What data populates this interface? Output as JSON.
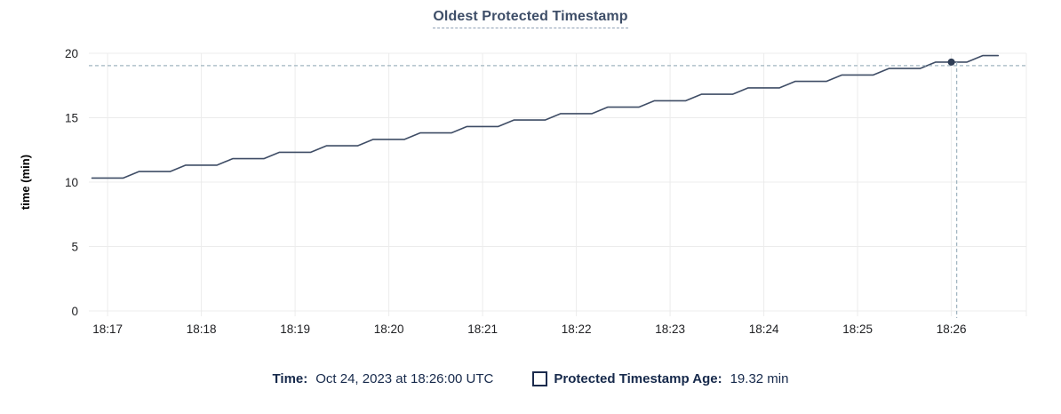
{
  "legend": {
    "time_label": "Time:",
    "time_value": "Oct 24, 2023 at 18:26:00 UTC",
    "series_label": "Protected Timestamp Age:",
    "series_value": "19.32 min"
  },
  "chart_data": {
    "type": "line",
    "title": "Oldest Protected Timestamp",
    "xlabel": "",
    "ylabel": "time (min)",
    "ylim": [
      0,
      20
    ],
    "yticks": [
      0,
      5,
      10,
      15,
      20
    ],
    "xticks": [
      "18:17",
      "18:18",
      "18:19",
      "18:20",
      "18:21",
      "18:22",
      "18:23",
      "18:24",
      "18:25",
      "18:26"
    ],
    "x_domain": [
      "18:16:48",
      "18:26:48"
    ],
    "grid": true,
    "legend_position": "bottom",
    "grid_color": "#ececec",
    "crosshair_color": "#a2b6c1",
    "series": [
      {
        "name": "Protected Timestamp Age",
        "color": "#3f4d66",
        "points": [
          [
            "18:16:50",
            10.32
          ],
          [
            "18:17:00",
            10.32
          ],
          [
            "18:17:10",
            10.32
          ],
          [
            "18:17:20",
            10.82
          ],
          [
            "18:17:30",
            10.82
          ],
          [
            "18:17:40",
            10.82
          ],
          [
            "18:17:50",
            11.32
          ],
          [
            "18:18:00",
            11.32
          ],
          [
            "18:18:10",
            11.32
          ],
          [
            "18:18:20",
            11.82
          ],
          [
            "18:18:30",
            11.82
          ],
          [
            "18:18:40",
            11.82
          ],
          [
            "18:18:50",
            12.32
          ],
          [
            "18:19:00",
            12.32
          ],
          [
            "18:19:10",
            12.32
          ],
          [
            "18:19:20",
            12.82
          ],
          [
            "18:19:30",
            12.82
          ],
          [
            "18:19:40",
            12.82
          ],
          [
            "18:19:50",
            13.32
          ],
          [
            "18:20:00",
            13.32
          ],
          [
            "18:20:10",
            13.32
          ],
          [
            "18:20:20",
            13.82
          ],
          [
            "18:20:30",
            13.82
          ],
          [
            "18:20:40",
            13.82
          ],
          [
            "18:20:50",
            14.32
          ],
          [
            "18:21:00",
            14.32
          ],
          [
            "18:21:10",
            14.32
          ],
          [
            "18:21:20",
            14.82
          ],
          [
            "18:21:30",
            14.82
          ],
          [
            "18:21:40",
            14.82
          ],
          [
            "18:21:50",
            15.32
          ],
          [
            "18:22:00",
            15.32
          ],
          [
            "18:22:10",
            15.32
          ],
          [
            "18:22:20",
            15.82
          ],
          [
            "18:22:30",
            15.82
          ],
          [
            "18:22:40",
            15.82
          ],
          [
            "18:22:50",
            16.32
          ],
          [
            "18:23:00",
            16.32
          ],
          [
            "18:23:10",
            16.32
          ],
          [
            "18:23:20",
            16.82
          ],
          [
            "18:23:30",
            16.82
          ],
          [
            "18:23:40",
            16.82
          ],
          [
            "18:23:50",
            17.32
          ],
          [
            "18:24:00",
            17.32
          ],
          [
            "18:24:10",
            17.32
          ],
          [
            "18:24:20",
            17.82
          ],
          [
            "18:24:30",
            17.82
          ],
          [
            "18:24:40",
            17.82
          ],
          [
            "18:24:50",
            18.32
          ],
          [
            "18:25:00",
            18.32
          ],
          [
            "18:25:10",
            18.32
          ],
          [
            "18:25:20",
            18.82
          ],
          [
            "18:25:30",
            18.82
          ],
          [
            "18:25:40",
            18.82
          ],
          [
            "18:25:50",
            19.32
          ],
          [
            "18:26:00",
            19.32
          ],
          [
            "18:26:10",
            19.32
          ],
          [
            "18:26:20",
            19.82
          ],
          [
            "18:26:30",
            19.82
          ]
        ]
      }
    ],
    "highlight": {
      "x": "18:26:00",
      "y": 19.32,
      "dot_color": "#2f3e56"
    }
  }
}
